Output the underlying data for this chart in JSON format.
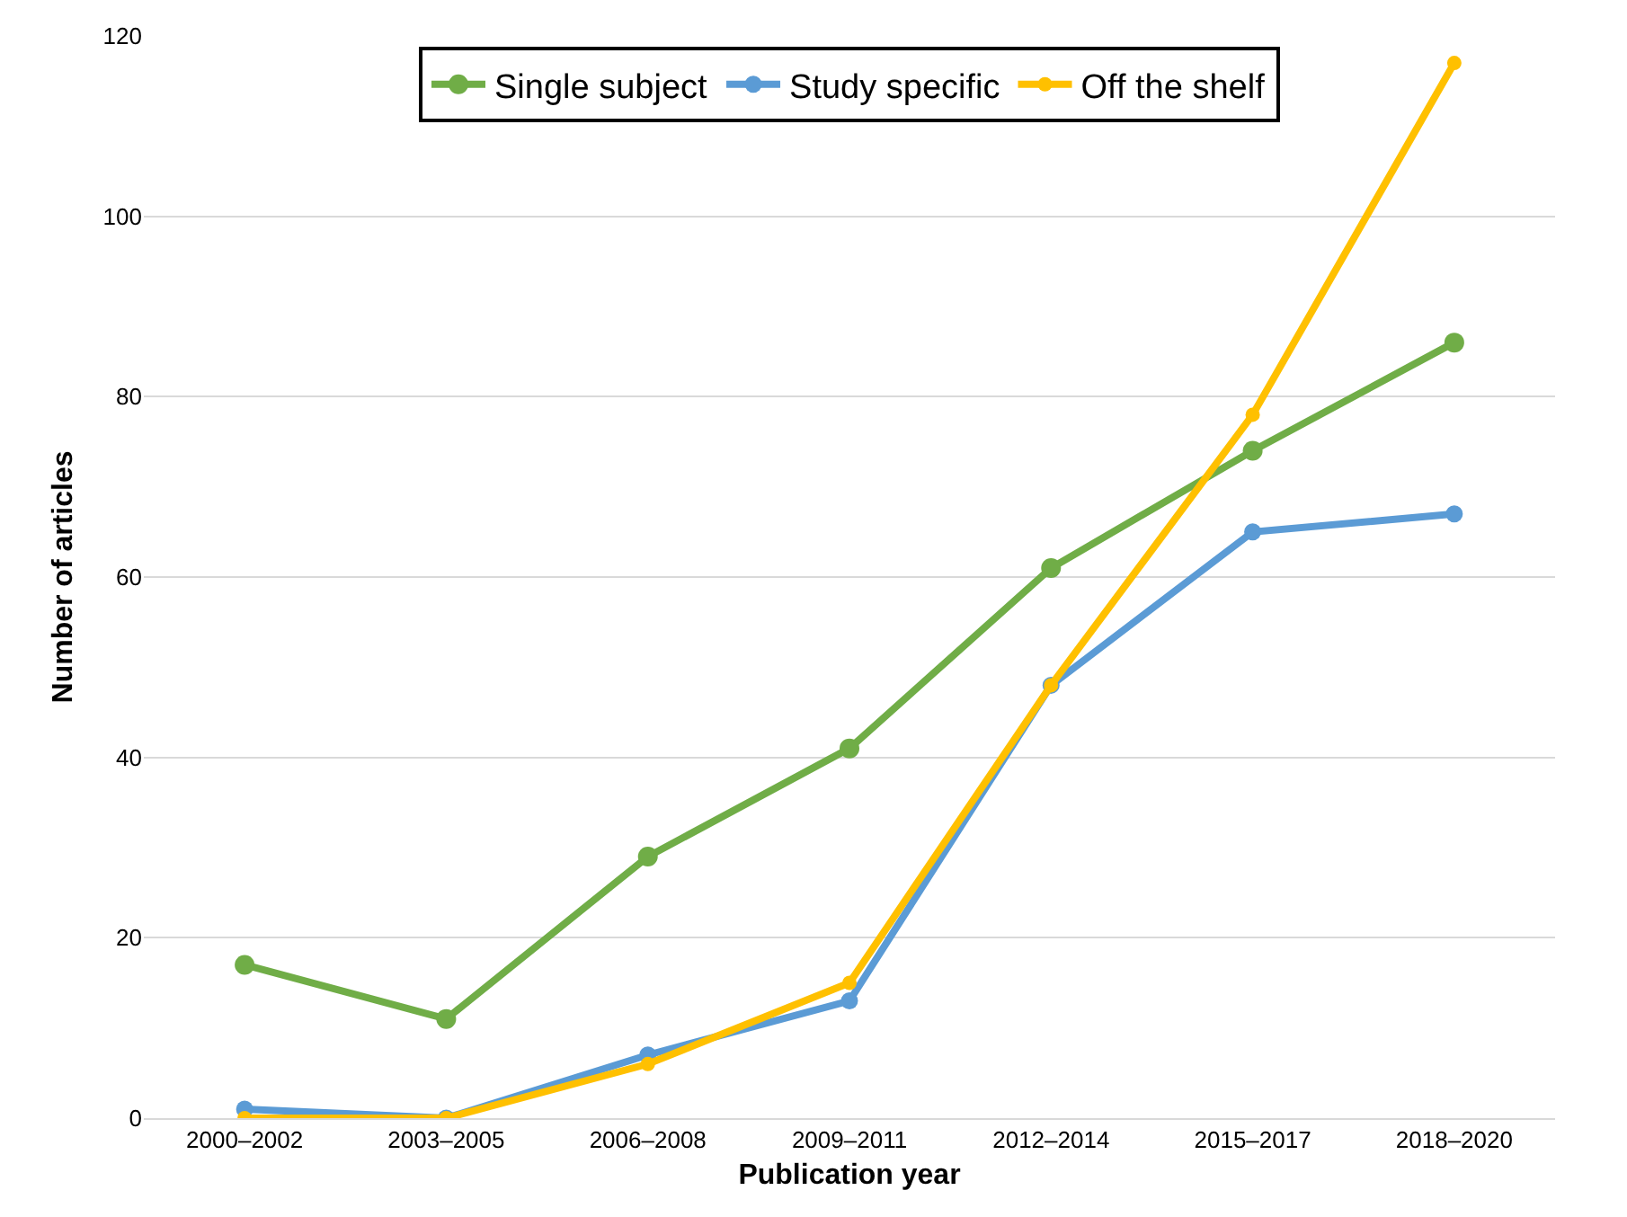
{
  "chart_data": {
    "type": "line",
    "xlabel": "Publication year",
    "ylabel": "Number of articles",
    "categories": [
      "2000–2002",
      "2003–2005",
      "2006–2008",
      "2009–2011",
      "2012–2014",
      "2015–2017",
      "2018–2020"
    ],
    "series": [
      {
        "name": "Single subject",
        "color": "#70ad47",
        "values": [
          17,
          11,
          29,
          41,
          61,
          74,
          86
        ]
      },
      {
        "name": "Study specific",
        "color": "#5b9bd5",
        "values": [
          1,
          0,
          7,
          13,
          48,
          65,
          67
        ]
      },
      {
        "name": "Off the shelf",
        "color": "#ffc000",
        "values": [
          0,
          0,
          6,
          15,
          48,
          78,
          117
        ]
      }
    ],
    "ylim": [
      0,
      120
    ],
    "yticks": [
      0,
      20,
      40,
      60,
      80,
      100,
      120
    ],
    "grid": "y",
    "legend": "top",
    "marker": "circle",
    "line_style": "solid"
  }
}
